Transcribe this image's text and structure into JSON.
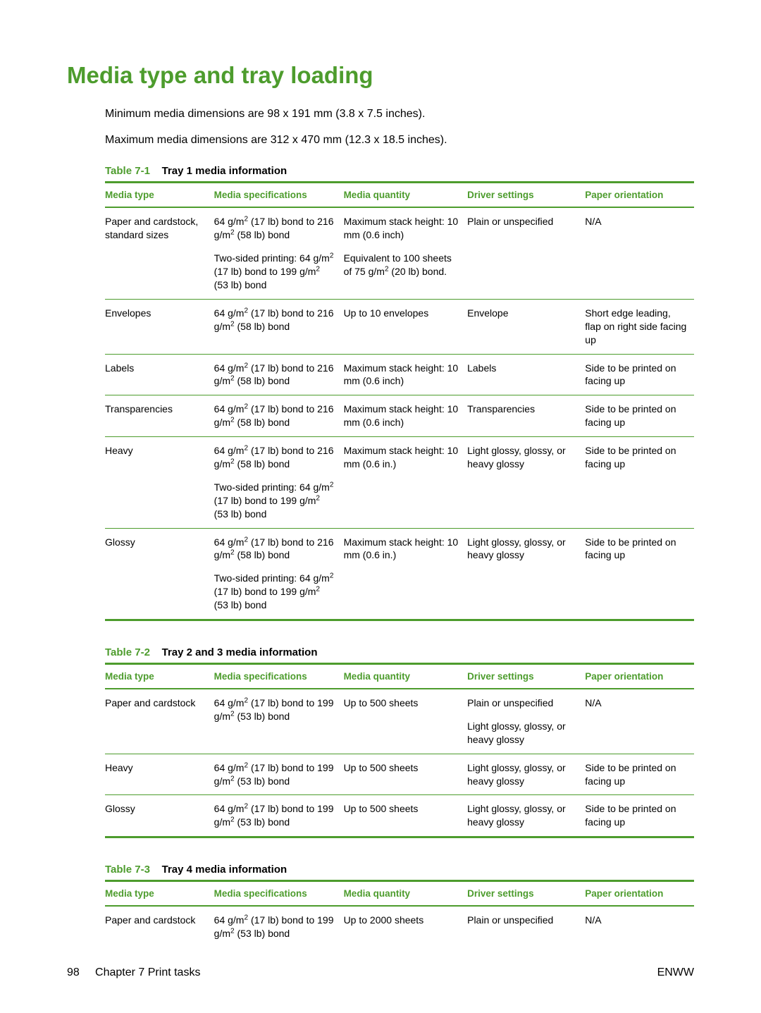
{
  "colors": {
    "accent": "#4d9c2d",
    "text": "#000000",
    "background": "#ffffff"
  },
  "heading": "Media type and tray loading",
  "intro": {
    "p1": "Minimum media dimensions are 98 x 191 mm (3.8 x 7.5 inches).",
    "p2": "Maximum media dimensions are 312 x 470 mm (12.3 x 18.5 inches)."
  },
  "columns": {
    "media_type": "Media type",
    "media_spec": "Media specifications",
    "media_qty": "Media quantity",
    "driver": "Driver settings",
    "orient": "Paper orientation"
  },
  "tables": {
    "t1": {
      "cap_num": "Table 7-1",
      "cap_title": "Tray 1 media information",
      "rows": {
        "r0": {
          "mt": "Paper and cardstock, standard sizes",
          "ms_a": "64 g/m² (17 lb) bond to 216 g/m² (58 lb) bond",
          "ms_b": "Two-sided printing: 64 g/m² (17 lb) bond to 199 g/m² (53 lb) bond",
          "mq_a": "Maximum stack height: 10 mm (0.6 inch)",
          "mq_b": "Equivalent to 100 sheets of 75 g/m² (20 lb) bond.",
          "ds": "Plain or unspecified",
          "po": "N/A"
        },
        "r1": {
          "mt": "Envelopes",
          "ms": "64 g/m² (17 lb) bond to 216 g/m² (58 lb) bond",
          "mq": "Up to 10 envelopes",
          "ds": "Envelope",
          "po": "Short edge leading, flap on right side facing up"
        },
        "r2": {
          "mt": "Labels",
          "ms": "64 g/m² (17 lb) bond to 216 g/m² (58 lb) bond",
          "mq": "Maximum stack height: 10 mm (0.6 inch)",
          "ds": "Labels",
          "po": "Side to be printed on facing up"
        },
        "r3": {
          "mt": "Transparencies",
          "ms": "64 g/m² (17 lb) bond to 216 g/m² (58 lb) bond",
          "mq": "Maximum stack height: 10 mm (0.6 inch)",
          "ds": "Transparencies",
          "po": "Side to be printed on facing up"
        },
        "r4": {
          "mt": "Heavy",
          "ms_a": "64 g/m² (17 lb) bond to 216 g/m² (58 lb) bond",
          "ms_b": "Two-sided printing: 64 g/m² (17 lb) bond to 199 g/m² (53 lb) bond",
          "mq": "Maximum stack height: 10 mm (0.6 in.)",
          "ds": "Light glossy, glossy, or heavy glossy",
          "po": "Side to be printed on facing up"
        },
        "r5": {
          "mt": "Glossy",
          "ms_a": "64 g/m² (17 lb) bond to 216 g/m² (58 lb) bond",
          "ms_b": "Two-sided printing: 64 g/m² (17 lb) bond to 199 g/m² (53 lb) bond",
          "mq": "Maximum stack height: 10 mm (0.6 in.)",
          "ds": "Light glossy, glossy, or heavy glossy",
          "po": "Side to be printed on facing up"
        }
      }
    },
    "t2": {
      "cap_num": "Table 7-2",
      "cap_title": "Tray 2 and 3 media information",
      "rows": {
        "r0": {
          "mt": "Paper and cardstock",
          "ms": "64 g/m² (17 lb) bond to 199 g/m² (53 lb) bond",
          "mq": "Up to 500 sheets",
          "ds_a": "Plain or unspecified",
          "ds_b": "Light glossy, glossy, or heavy glossy",
          "po": "N/A"
        },
        "r1": {
          "mt": "Heavy",
          "ms": "64 g/m² (17 lb) bond to 199 g/m² (53 lb) bond",
          "mq": "Up to 500 sheets",
          "ds": "Light glossy, glossy, or heavy glossy",
          "po": "Side to be printed on facing up"
        },
        "r2": {
          "mt": "Glossy",
          "ms": "64 g/m² (17 lb) bond to 199 g/m² (53 lb) bond",
          "mq": "Up to 500 sheets",
          "ds": "Light glossy, glossy, or heavy glossy",
          "po": "Side to be printed on facing up"
        }
      }
    },
    "t3": {
      "cap_num": "Table 7-3",
      "cap_title": "Tray 4 media information",
      "rows": {
        "r0": {
          "mt": "Paper and cardstock",
          "ms": "64 g/m² (17 lb) bond to 199 g/m² (53 lb) bond",
          "mq": "Up to 2000 sheets",
          "ds": "Plain or unspecified",
          "po": "N/A"
        }
      }
    }
  },
  "footer": {
    "page_num": "98",
    "chapter": "Chapter 7   Print tasks",
    "right": "ENWW"
  }
}
